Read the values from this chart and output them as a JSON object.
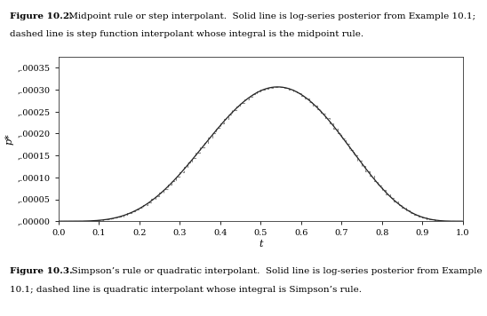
{
  "title_line1_bold": "Figure 10.2.",
  "title_line1_normal": " Midpoint rule or step interpolant.  Solid line is log-series posterior from Example 10.1;",
  "title_line2": "dashed line is step function interpolant whose integral is the midpoint rule.",
  "caption_line1_bold": "Figure 10.3.",
  "caption_line1_normal": "  Simpson’s rule or quadratic interpolant.  Solid line is log-series posterior from Example",
  "caption_line2": "10.1; dashed line is quadratic interpolant whose integral is Simpson’s rule.",
  "xlabel": "t",
  "ylabel": "p*",
  "xlim": [
    0.0,
    1.0
  ],
  "ylim": [
    0.0,
    0.000375
  ],
  "xticks": [
    0.0,
    0.1,
    0.2,
    0.3,
    0.4,
    0.5,
    0.6,
    0.7,
    0.8,
    0.9,
    1.0
  ],
  "yticks": [
    0.0,
    5e-05,
    0.0001,
    0.00015,
    0.0002,
    0.00025,
    0.0003,
    0.00035
  ],
  "solid_color": "#222222",
  "dashed_color": "#888888",
  "background_color": "#ffffff",
  "n_points": 1000,
  "peak_t": 0.525,
  "peak_val": 0.000305,
  "shape_alpha": 5.5,
  "shape_beta": 4.8,
  "step_n": 100
}
